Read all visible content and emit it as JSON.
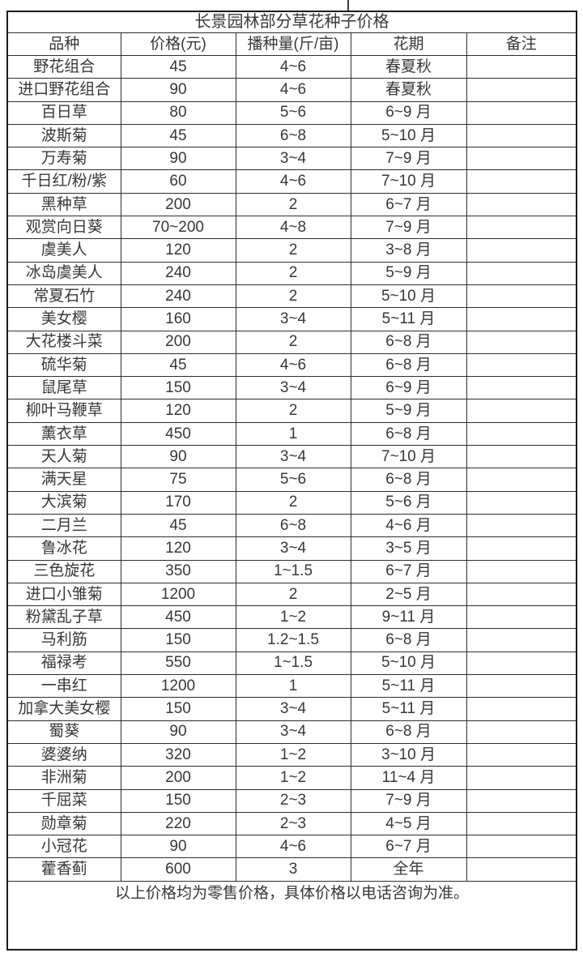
{
  "page": {
    "background": "#ffffff",
    "text_color": "#383838",
    "border_color": "#2e2e2e"
  },
  "table": {
    "title": "长景园林部分草花种子价格",
    "columns": [
      "品种",
      "价格(元)",
      "播种量(斤/亩)",
      "花期",
      "备注"
    ],
    "column_keys": [
      "variety",
      "price",
      "sowing-rate",
      "flowering-period",
      "note"
    ],
    "rows": [
      [
        "野花组合",
        "45",
        "4~6",
        "春夏秋",
        ""
      ],
      [
        "进口野花组合",
        "90",
        "4~6",
        "春夏秋",
        ""
      ],
      [
        "百日草",
        "80",
        "5~6",
        "6~9 月",
        ""
      ],
      [
        "波斯菊",
        "45",
        "6~8",
        "5~10 月",
        ""
      ],
      [
        "万寿菊",
        "90",
        "3~4",
        "7~9 月",
        ""
      ],
      [
        "千日红/粉/紫",
        "60",
        "4~6",
        "7~10 月",
        ""
      ],
      [
        "黑种草",
        "200",
        "2",
        "6~7 月",
        ""
      ],
      [
        "观赏向日葵",
        "70~200",
        "4~8",
        "7~9 月",
        ""
      ],
      [
        "虞美人",
        "120",
        "2",
        "3~8 月",
        ""
      ],
      [
        "冰岛虞美人",
        "240",
        "2",
        "5~9 月",
        ""
      ],
      [
        "常夏石竹",
        "240",
        "2",
        "5~10 月",
        ""
      ],
      [
        "美女樱",
        "160",
        "3~4",
        "5~11 月",
        ""
      ],
      [
        "大花楼斗菜",
        "200",
        "2",
        "6~8 月",
        ""
      ],
      [
        "硫华菊",
        "45",
        "4~6",
        "6~8 月",
        ""
      ],
      [
        "鼠尾草",
        "150",
        "3~4",
        "6~9 月",
        ""
      ],
      [
        "柳叶马鞭草",
        "120",
        "2",
        "5~9 月",
        ""
      ],
      [
        "薰衣草",
        "450",
        "1",
        "6~8 月",
        ""
      ],
      [
        "天人菊",
        "90",
        "3~4",
        "7~10 月",
        ""
      ],
      [
        "满天星",
        "75",
        "5~6",
        "6~8 月",
        ""
      ],
      [
        "大滨菊",
        "170",
        "2",
        "5~6 月",
        ""
      ],
      [
        "二月兰",
        "45",
        "6~8",
        "4~6 月",
        ""
      ],
      [
        "鲁冰花",
        "120",
        "3~4",
        "3~5 月",
        ""
      ],
      [
        "三色旋花",
        "350",
        "1~1.5",
        "6~7 月",
        ""
      ],
      [
        "进口小雏菊",
        "1200",
        "2",
        "2~5 月",
        ""
      ],
      [
        "粉黛乱子草",
        "450",
        "1~2",
        "9~11 月",
        ""
      ],
      [
        "马利筋",
        "150",
        "1.2~1.5",
        "6~8 月",
        ""
      ],
      [
        "福禄考",
        "550",
        "1~1.5",
        "5~10 月",
        ""
      ],
      [
        "一串红",
        "1200",
        "1",
        "5~11 月",
        ""
      ],
      [
        "加拿大美女樱",
        "150",
        "3~4",
        "5~11 月",
        ""
      ],
      [
        "蜀葵",
        "90",
        "3~4",
        "6~8 月",
        ""
      ],
      [
        "婆婆纳",
        "320",
        "1~2",
        "3~10 月",
        ""
      ],
      [
        "非洲菊",
        "200",
        "1~2",
        "11~4 月",
        ""
      ],
      [
        "千屈菜",
        "150",
        "2~3",
        "7~9 月",
        ""
      ],
      [
        "勋章菊",
        "220",
        "2~3",
        "4~5 月",
        ""
      ],
      [
        "小冠花",
        "90",
        "4~6",
        "6~7 月",
        ""
      ],
      [
        "藿香蓟",
        "600",
        "3",
        "全年",
        ""
      ]
    ],
    "footnote": "以上价格均为零售价格，具体价格以电话咨询为准。"
  }
}
